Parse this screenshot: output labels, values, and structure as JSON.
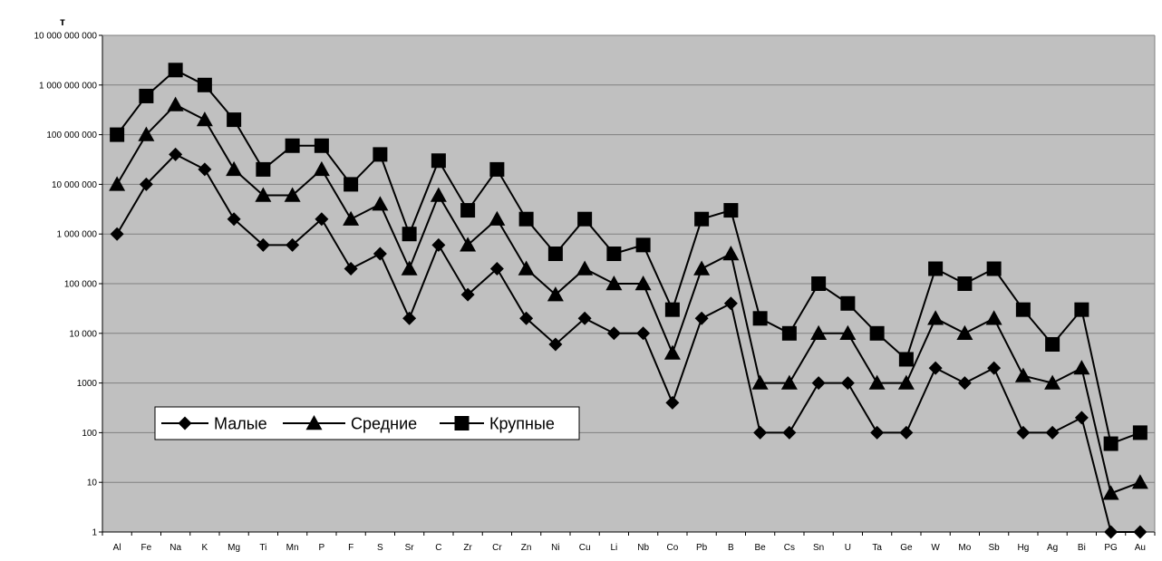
{
  "chart_data": {
    "type": "line",
    "yscale": "log",
    "ylim": [
      1,
      10000000000
    ],
    "ylabel": "т",
    "grid": true,
    "legend_placement": "lower-left",
    "colors": {
      "plot_background": "#c0c0c0",
      "gridline": "#808080",
      "series": "#000000"
    },
    "y_ticks": [
      {
        "value": 1,
        "label": "1"
      },
      {
        "value": 10,
        "label": "10"
      },
      {
        "value": 100,
        "label": "100"
      },
      {
        "value": 1000,
        "label": "1000"
      },
      {
        "value": 10000,
        "label": "10 000"
      },
      {
        "value": 100000,
        "label": "100 000"
      },
      {
        "value": 1000000,
        "label": "1 000 000"
      },
      {
        "value": 10000000,
        "label": "10 000 000"
      },
      {
        "value": 100000000,
        "label": "100 000 000"
      },
      {
        "value": 1000000000,
        "label": "1 000 000 000"
      },
      {
        "value": 10000000000,
        "label": "10 000 000 000"
      }
    ],
    "categories": [
      "Al",
      "Fe",
      "Na",
      "K",
      "Mg",
      "Ti",
      "Mn",
      "P",
      "F",
      "S",
      "Sr",
      "C",
      "Zr",
      "Cr",
      "Zn",
      "Ni",
      "Cu",
      "Li",
      "Nb",
      "Co",
      "Pb",
      "B",
      "Be",
      "Cs",
      "Sn",
      "U",
      "Ta",
      "Ge",
      "W",
      "Mo",
      "Sb",
      "Hg",
      "Ag",
      "Bi",
      "PG",
      "Au"
    ],
    "series": [
      {
        "name": "Малые",
        "marker": "diamond",
        "values": [
          1000000,
          10000000,
          40000000,
          20000000,
          2000000,
          600000,
          600000,
          2000000,
          200000,
          400000,
          20000,
          600000,
          60000,
          200000,
          20000,
          6000,
          20000,
          10000,
          10000,
          400,
          20000,
          40000,
          100,
          100,
          1000,
          1000,
          100,
          100,
          2000,
          1000,
          2000,
          100,
          100,
          200,
          1,
          1
        ]
      },
      {
        "name": "Средние",
        "marker": "triangle",
        "values": [
          10000000,
          100000000,
          400000000,
          200000000,
          20000000,
          6000000,
          6000000,
          20000000,
          2000000,
          4000000,
          200000,
          6000000,
          600000,
          2000000,
          200000,
          60000,
          200000,
          100000,
          100000,
          4000,
          200000,
          400000,
          1000,
          1000,
          10000,
          10000,
          1000,
          1000,
          20000,
          10000,
          20000,
          1400,
          1000,
          2000,
          6,
          10
        ]
      },
      {
        "name": "Крупные",
        "marker": "square",
        "values": [
          100000000,
          600000000,
          2000000000,
          1000000000,
          200000000,
          20000000,
          60000000,
          60000000,
          10000000,
          40000000,
          1000000,
          30000000,
          3000000,
          20000000,
          2000000,
          400000,
          2000000,
          400000,
          600000,
          30000,
          2000000,
          3000000,
          20000,
          10000,
          100000,
          40000,
          10000,
          3000,
          200000,
          100000,
          200000,
          30000,
          6000,
          30000,
          60,
          100
        ]
      }
    ]
  }
}
